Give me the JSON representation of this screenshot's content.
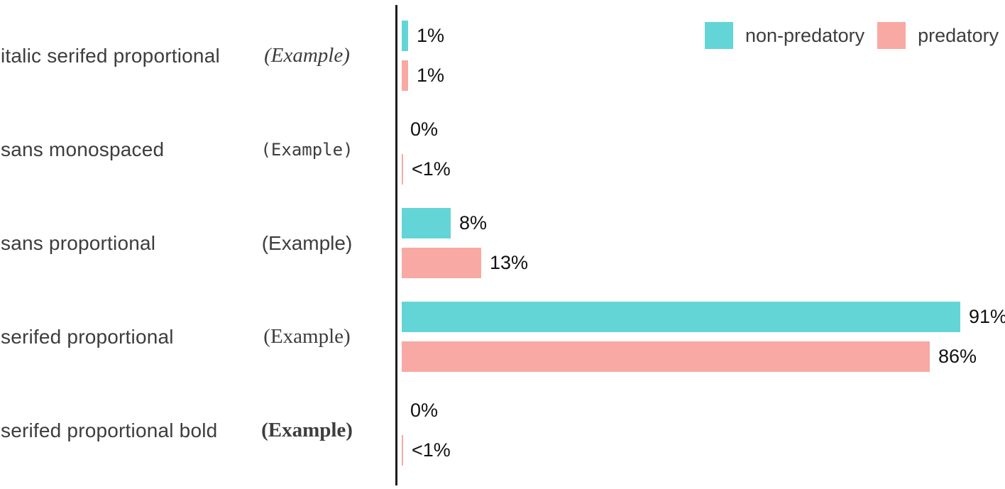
{
  "chart_data": {
    "type": "bar",
    "orientation": "horizontal",
    "value_unit": "percent",
    "xlim": [
      0,
      100
    ],
    "axis_style": "single vertical baseline at 0, no ticks, no gridlines, no x-axis labels",
    "colors": {
      "non_predatory": "#64D5D6",
      "predatory": "#F9A9A3",
      "axis": "#1c1c1c",
      "category_text": "#3d3d3d",
      "value_text": "#111111"
    },
    "legend": {
      "position": "top-right",
      "items": [
        {
          "label": "non-predatory",
          "color": "#64D5D6"
        },
        {
          "label": "predatory",
          "color": "#F9A9A3"
        }
      ]
    },
    "rows": [
      {
        "category": "italic serifed proportional",
        "example": "(Example)",
        "example_font": "italic serifed proportional",
        "non_predatory": {
          "value": 1,
          "label": "1%"
        },
        "predatory": {
          "value": 1,
          "label": "1%"
        }
      },
      {
        "category": "sans monospaced",
        "example": "(Example)",
        "example_font": "sans monospaced",
        "non_predatory": {
          "value": 0,
          "label": "0%"
        },
        "predatory": {
          "value": 0.2,
          "label": "<1%"
        }
      },
      {
        "category": "sans proportional",
        "example": "(Example)",
        "example_font": "sans proportional",
        "non_predatory": {
          "value": 8,
          "label": "8%"
        },
        "predatory": {
          "value": 13,
          "label": "13%"
        }
      },
      {
        "category": "serifed proportional",
        "example": "(Example)",
        "example_font": "serifed proportional",
        "non_predatory": {
          "value": 91,
          "label": "91%"
        },
        "predatory": {
          "value": 86,
          "label": "86%"
        }
      },
      {
        "category": "serifed proportional bold",
        "example": "(Example)",
        "example_font": "serifed proportional bold",
        "non_predatory": {
          "value": 0,
          "label": "0%"
        },
        "predatory": {
          "value": 0.2,
          "label": "<1%"
        }
      }
    ]
  }
}
